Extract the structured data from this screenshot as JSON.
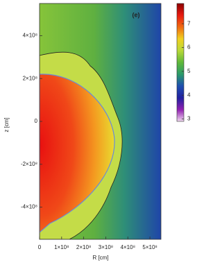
{
  "chart_data": {
    "type": "heatmap",
    "panel_label": "(e)",
    "xlabel": "R [cm]",
    "ylabel": "z [cm]",
    "xlim": [
      0,
      550000000
    ],
    "ylim": [
      -550000000,
      550000000
    ],
    "xticks": [
      0,
      {
        "value": 100000000,
        "label": "1×10⁸"
      },
      {
        "value": 200000000,
        "label": "2×10⁸"
      },
      {
        "value": 300000000,
        "label": "3×10⁸"
      },
      {
        "value": 400000000,
        "label": "4×10⁸"
      },
      {
        "value": 500000000,
        "label": "5×10⁸"
      }
    ],
    "yticks": [
      {
        "value": -400000000,
        "label": "-4×10⁸"
      },
      {
        "value": -200000000,
        "label": "-2×10⁸"
      },
      0,
      {
        "value": 200000000,
        "label": "2×10⁸"
      },
      {
        "value": 400000000,
        "label": "4×10⁸"
      }
    ],
    "clim": [
      2.9,
      7.85
    ],
    "cticks": [
      3,
      4,
      5,
      6,
      7
    ],
    "colormap": [
      "#8b0000",
      "#e81a10",
      "#f06a10",
      "#f0d020",
      "#b8d838",
      "#5fb83a",
      "#2a9a6a",
      "#1f4fb0",
      "#2020a0",
      "#9020b0",
      "#f0d8f0"
    ]
  }
}
